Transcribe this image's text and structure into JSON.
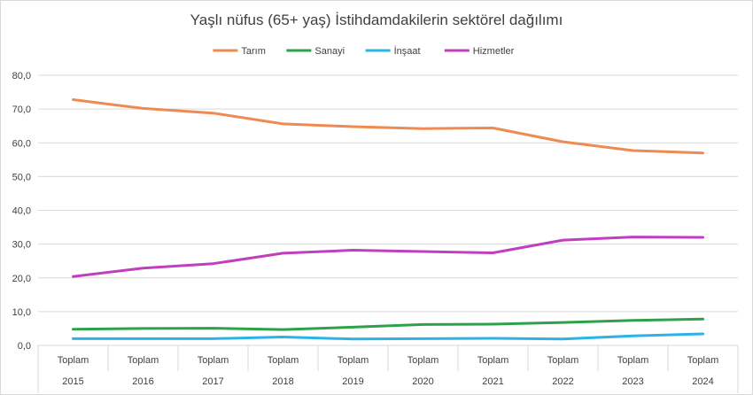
{
  "chart_data": {
    "type": "line",
    "title": "Yaşlı nüfus (65+ yaş) İstihdamdakilerin sektörel dağılımı",
    "xlabel": "",
    "ylabel": "",
    "ylim": [
      0,
      80
    ],
    "yticks": [
      "0,0",
      "10,0",
      "20,0",
      "30,0",
      "40,0",
      "50,0",
      "60,0",
      "70,0",
      "80,0"
    ],
    "grid": true,
    "legend_position": "top",
    "categories": [
      {
        "label": "Toplam",
        "year": "2015"
      },
      {
        "label": "Toplam",
        "year": "2016"
      },
      {
        "label": "Toplam",
        "year": "2017"
      },
      {
        "label": "Toplam",
        "year": "2018"
      },
      {
        "label": "Toplam",
        "year": "2019"
      },
      {
        "label": "Toplam",
        "year": "2020"
      },
      {
        "label": "Toplam",
        "year": "2021"
      },
      {
        "label": "Toplam",
        "year": "2022"
      },
      {
        "label": "Toplam",
        "year": "2023"
      },
      {
        "label": "Toplam",
        "year": "2024"
      }
    ],
    "series": [
      {
        "name": "Tarım",
        "color": "#ed8b52",
        "values": [
          72.8,
          70.2,
          68.8,
          65.6,
          64.8,
          64.2,
          64.4,
          60.3,
          57.7,
          57.0
        ]
      },
      {
        "name": "Sanayi",
        "color": "#2ea24a",
        "values": [
          4.8,
          5.0,
          5.1,
          4.7,
          5.4,
          6.2,
          6.3,
          6.8,
          7.4,
          7.8
        ]
      },
      {
        "name": "İnşaat",
        "color": "#2bb3e6",
        "values": [
          2.0,
          2.0,
          2.0,
          2.5,
          1.9,
          2.0,
          2.1,
          1.9,
          2.8,
          3.4
        ]
      },
      {
        "name": "Hizmetler",
        "color": "#bf3fbf",
        "values": [
          20.4,
          22.9,
          24.2,
          27.3,
          28.2,
          27.8,
          27.4,
          31.2,
          32.1,
          32.0
        ]
      }
    ]
  }
}
